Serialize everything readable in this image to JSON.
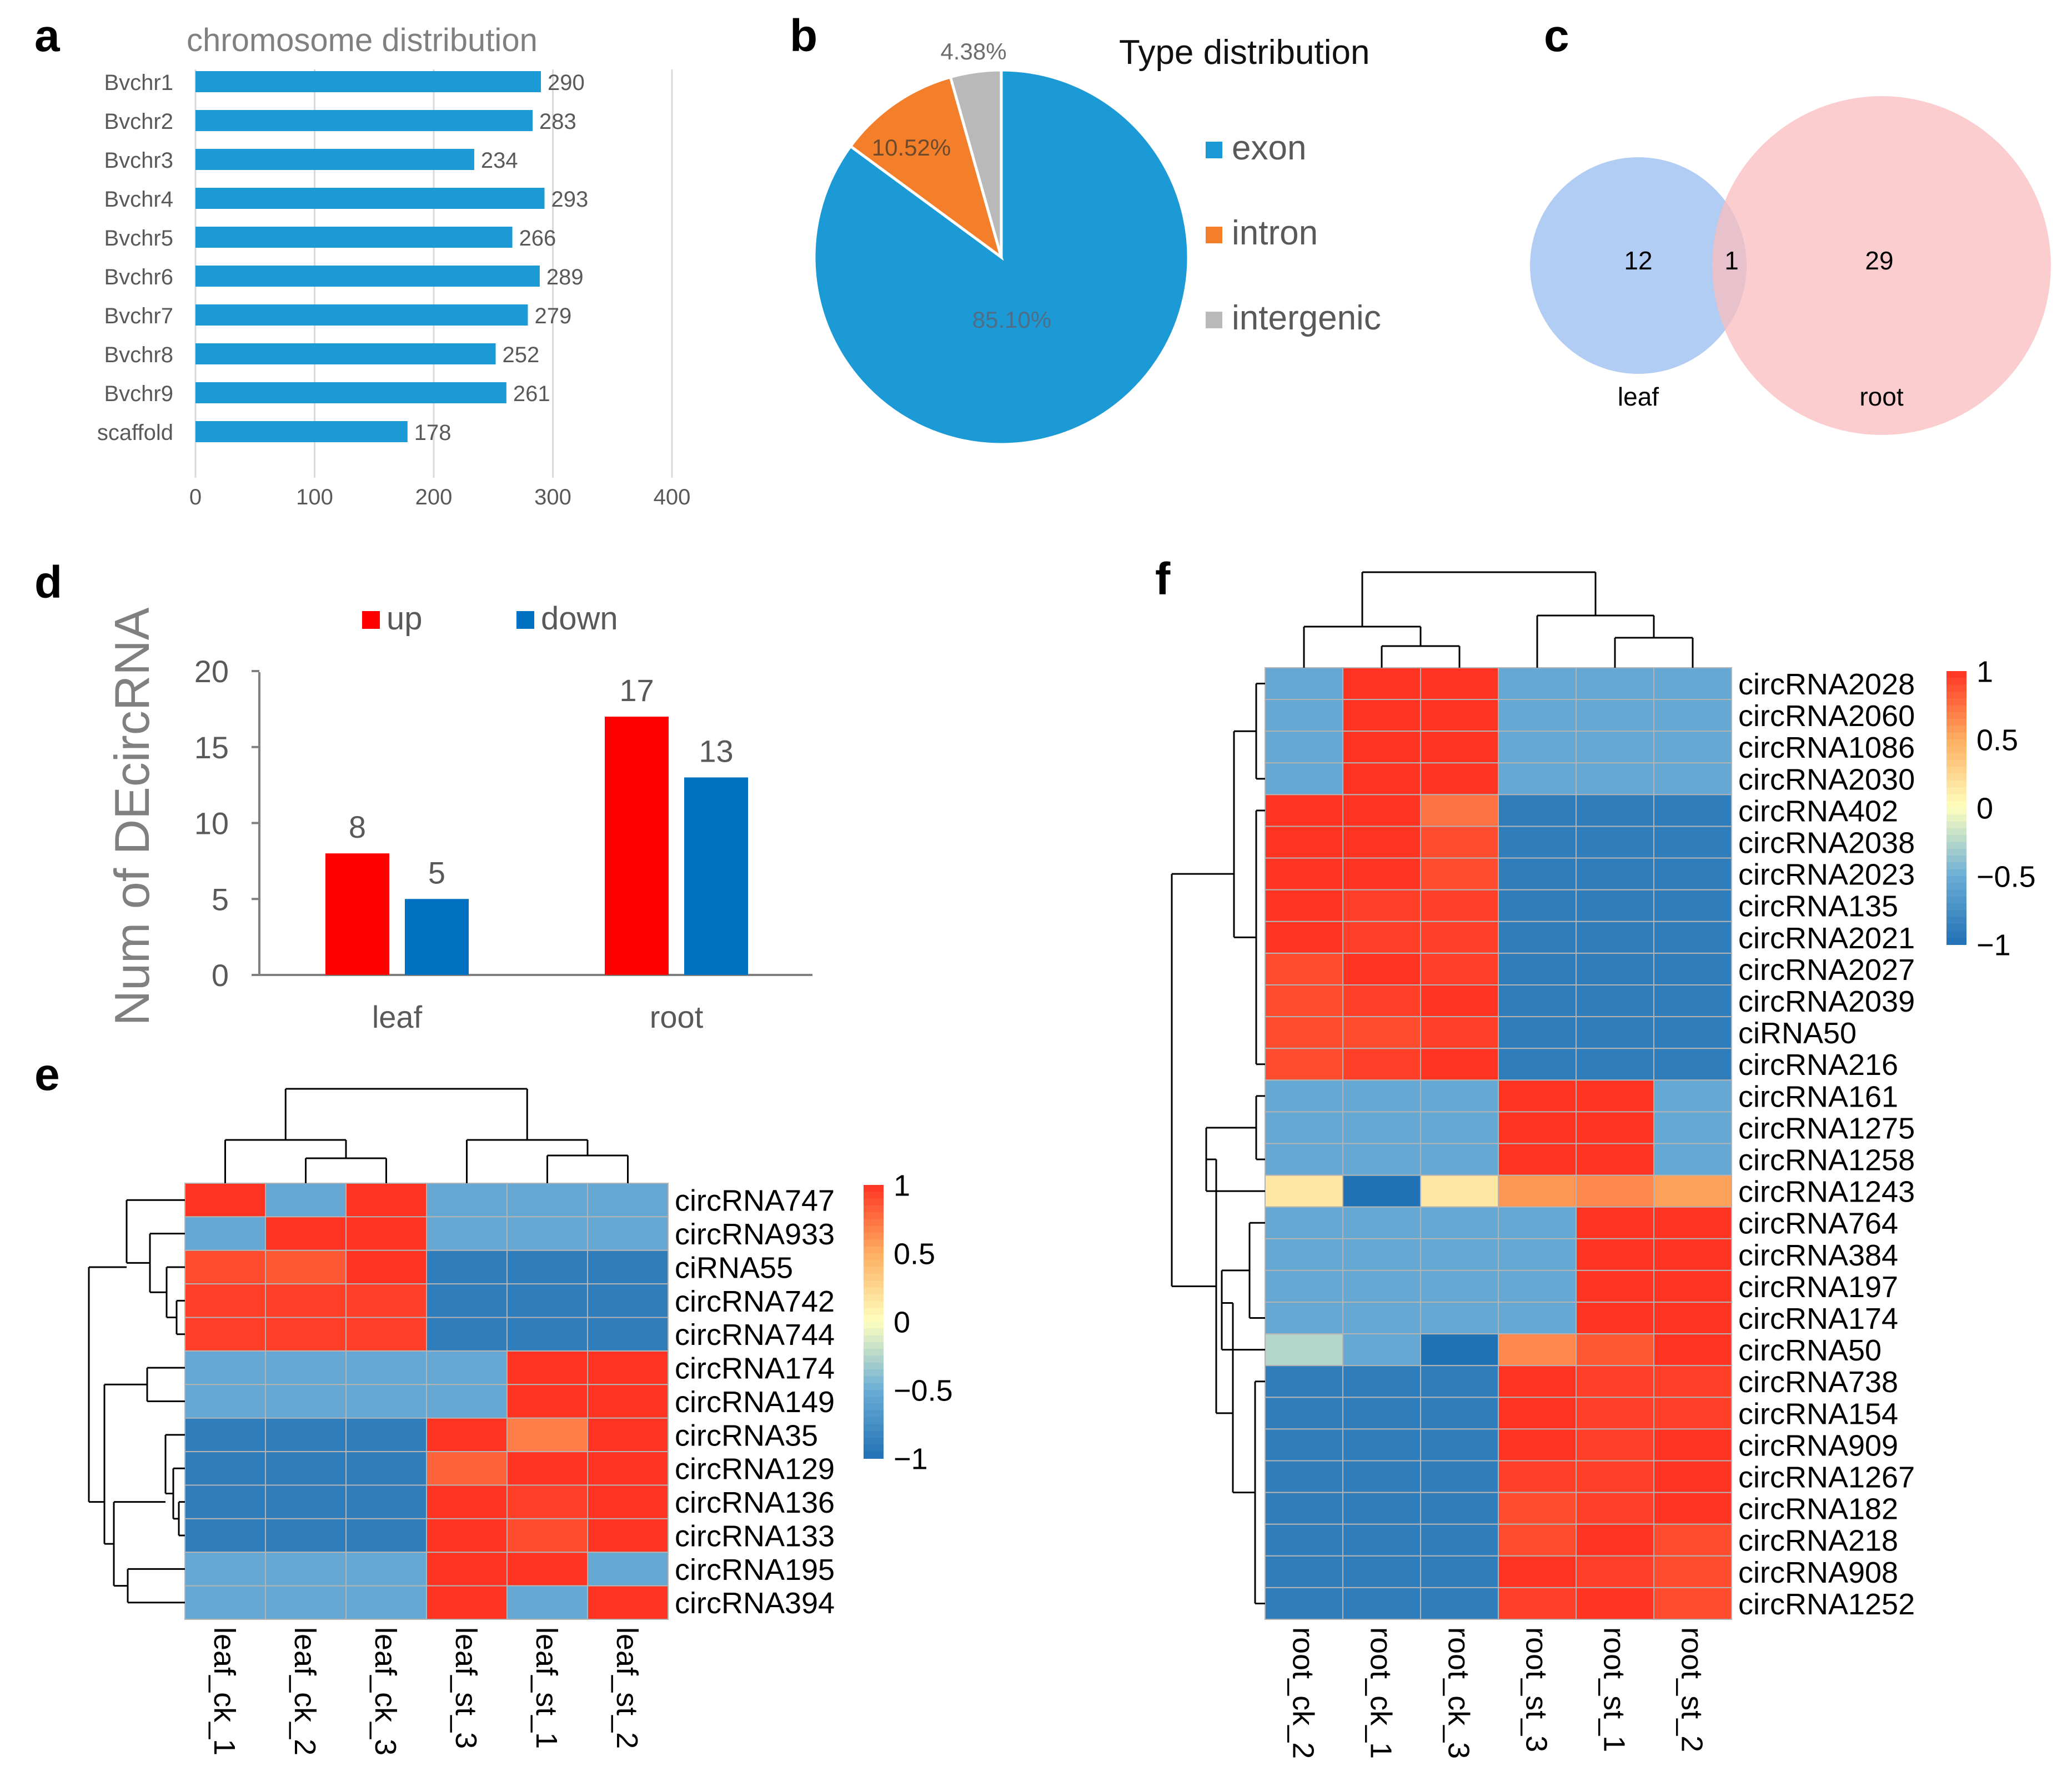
{
  "panel_labels": {
    "a": "a",
    "b": "b",
    "c": "c",
    "d": "d",
    "e": "e",
    "f": "f"
  },
  "chart_data": [
    {
      "id": "a",
      "type": "bar",
      "orientation": "horizontal",
      "title": "chromosome distribution",
      "categories": [
        "Bvchr1",
        "Bvchr2",
        "Bvchr3",
        "Bvchr4",
        "Bvchr5",
        "Bvchr6",
        "Bvchr7",
        "Bvchr8",
        "Bvchr9",
        "scaffold"
      ],
      "values": [
        290,
        283,
        234,
        293,
        266,
        289,
        279,
        252,
        261,
        178
      ],
      "xlim": [
        0,
        400
      ],
      "xticks": [
        0,
        100,
        200,
        300,
        400
      ],
      "color": "#1b9ad6",
      "grid": true
    },
    {
      "id": "b",
      "type": "pie",
      "title": "Type distribution",
      "labels": [
        "exon",
        "intron",
        "intergenic"
      ],
      "values": [
        85.1,
        10.52,
        4.38
      ],
      "value_labels": [
        "85.10%",
        "10.52%",
        "4.38%"
      ],
      "colors": [
        "#1b9ad6",
        "#f47f2a",
        "#b9b9b9"
      ],
      "legend": "right"
    },
    {
      "id": "c",
      "type": "venn",
      "sets": [
        "leaf",
        "root"
      ],
      "only_left": "12",
      "overlap": "1",
      "only_right": "29",
      "colors": [
        "#a8c8f2",
        "#f9bcbf"
      ]
    },
    {
      "id": "d",
      "type": "bar",
      "ylabel": "Num of DEcircRNA",
      "categories": [
        "leaf",
        "root"
      ],
      "series": [
        {
          "name": "up",
          "values": [
            8,
            17
          ],
          "color": "#ff0000"
        },
        {
          "name": "down",
          "values": [
            5,
            13
          ],
          "color": "#0070c0"
        }
      ],
      "ylim": [
        0,
        20
      ],
      "yticks": [
        0,
        5,
        10,
        15,
        20
      ],
      "legend": "top"
    },
    {
      "id": "e",
      "type": "heatmap",
      "rows": [
        "circRNA747",
        "circRNA933",
        "ciRNA55",
        "circRNA742",
        "circRNA744",
        "circRNA174",
        "circRNA149",
        "circRNA35",
        "circRNA129",
        "circRNA136",
        "circRNA133",
        "circRNA195",
        "circRNA394"
      ],
      "columns": [
        "leaf_ck_1",
        "leaf_ck_2",
        "leaf_ck_3",
        "leaf_st_3",
        "leaf_st_1",
        "leaf_st_2"
      ],
      "values": [
        [
          1,
          -0.55,
          1,
          -0.55,
          -0.55,
          -0.55
        ],
        [
          -0.55,
          1,
          1,
          -0.55,
          -0.55,
          -0.55
        ],
        [
          0.9,
          0.85,
          1,
          -0.9,
          -0.9,
          -0.9
        ],
        [
          0.95,
          0.95,
          0.95,
          -0.9,
          -0.9,
          -0.9
        ],
        [
          0.95,
          0.95,
          0.95,
          -0.9,
          -0.9,
          -0.9
        ],
        [
          -0.55,
          -0.55,
          -0.55,
          -0.55,
          1,
          1
        ],
        [
          -0.55,
          -0.55,
          -0.55,
          -0.55,
          1,
          1
        ],
        [
          -0.9,
          -0.9,
          -0.9,
          1,
          0.7,
          1
        ],
        [
          -0.9,
          -0.9,
          -0.9,
          0.8,
          1,
          1
        ],
        [
          -0.9,
          -0.9,
          -0.9,
          1,
          0.95,
          1
        ],
        [
          -0.9,
          -0.9,
          -0.9,
          1,
          0.9,
          1
        ],
        [
          -0.55,
          -0.55,
          -0.55,
          1,
          1,
          -0.55
        ],
        [
          -0.55,
          -0.55,
          -0.55,
          1,
          -0.55,
          1
        ]
      ],
      "color_range": [
        -1,
        1
      ],
      "colorbar_ticks": [
        "1",
        "0.5",
        "0",
        "−0.5",
        "−1"
      ]
    },
    {
      "id": "f",
      "type": "heatmap",
      "rows": [
        "circRNA2028",
        "circRNA2060",
        "circRNA1086",
        "circRNA2030",
        "circRNA402",
        "circRNA2038",
        "circRNA2023",
        "circRNA135",
        "circRNA2021",
        "circRNA2027",
        "circRNA2039",
        "ciRNA50",
        "circRNA216",
        "circRNA161",
        "circRNA1275",
        "circRNA1258",
        "circRNA1243",
        "circRNA764",
        "circRNA384",
        "circRNA197",
        "circRNA174",
        "circRNA50",
        "circRNA738",
        "circRNA154",
        "circRNA909",
        "circRNA1267",
        "circRNA182",
        "circRNA218",
        "circRNA908",
        "circRNA1252"
      ],
      "columns": [
        "root_ck_2",
        "root_ck_1",
        "root_ck_3",
        "root_st_3",
        "root_st_1",
        "root_st_2"
      ],
      "values": [
        [
          -0.55,
          1,
          1,
          -0.55,
          -0.55,
          -0.55
        ],
        [
          -0.55,
          1,
          1,
          -0.55,
          -0.55,
          -0.55
        ],
        [
          -0.55,
          1,
          1,
          -0.55,
          -0.55,
          -0.55
        ],
        [
          -0.55,
          1,
          1,
          -0.55,
          -0.55,
          -0.55
        ],
        [
          1,
          1,
          0.75,
          -0.9,
          -0.9,
          -0.9
        ],
        [
          1,
          1,
          0.9,
          -0.9,
          -0.9,
          -0.9
        ],
        [
          1,
          1,
          0.9,
          -0.9,
          -0.9,
          -0.9
        ],
        [
          1,
          0.95,
          0.95,
          -0.9,
          -0.9,
          -0.9
        ],
        [
          1,
          0.95,
          0.95,
          -0.9,
          -0.9,
          -0.9
        ],
        [
          0.9,
          1,
          0.95,
          -0.9,
          -0.9,
          -0.9
        ],
        [
          0.9,
          0.95,
          1,
          -0.9,
          -0.9,
          -0.9
        ],
        [
          0.9,
          0.9,
          0.95,
          -0.9,
          -0.9,
          -0.9
        ],
        [
          0.9,
          0.95,
          1,
          -0.9,
          -0.9,
          -0.9
        ],
        [
          -0.55,
          -0.55,
          -0.55,
          1,
          1,
          -0.55
        ],
        [
          -0.55,
          -0.55,
          -0.55,
          1,
          1,
          -0.55
        ],
        [
          -0.55,
          -0.55,
          -0.55,
          1,
          1,
          -0.55
        ],
        [
          0.15,
          -1,
          0.15,
          0.6,
          0.65,
          0.55
        ],
        [
          -0.55,
          -0.55,
          -0.55,
          -0.55,
          1,
          1
        ],
        [
          -0.55,
          -0.55,
          -0.55,
          -0.55,
          1,
          1
        ],
        [
          -0.55,
          -0.55,
          -0.55,
          -0.55,
          1,
          1
        ],
        [
          -0.55,
          -0.55,
          -0.55,
          -0.55,
          1,
          1
        ],
        [
          -0.25,
          -0.55,
          -1,
          0.65,
          0.85,
          1
        ],
        [
          -0.9,
          -0.9,
          -0.9,
          1,
          0.95,
          0.95
        ],
        [
          -0.9,
          -0.9,
          -0.9,
          1,
          0.95,
          0.95
        ],
        [
          -0.9,
          -0.9,
          -0.9,
          1,
          0.95,
          1
        ],
        [
          -0.9,
          -0.9,
          -0.9,
          0.95,
          0.95,
          1
        ],
        [
          -0.9,
          -0.9,
          -0.9,
          0.9,
          0.95,
          1
        ],
        [
          -0.9,
          -0.9,
          -0.9,
          0.9,
          1,
          0.9
        ],
        [
          -0.9,
          -0.9,
          -0.9,
          1,
          0.95,
          0.9
        ],
        [
          -0.9,
          -0.9,
          -0.9,
          0.95,
          1,
          0.9
        ]
      ],
      "color_range": [
        -1,
        1
      ],
      "colorbar_ticks": [
        "1",
        "0.5",
        "0",
        "−0.5",
        "−1"
      ]
    }
  ]
}
